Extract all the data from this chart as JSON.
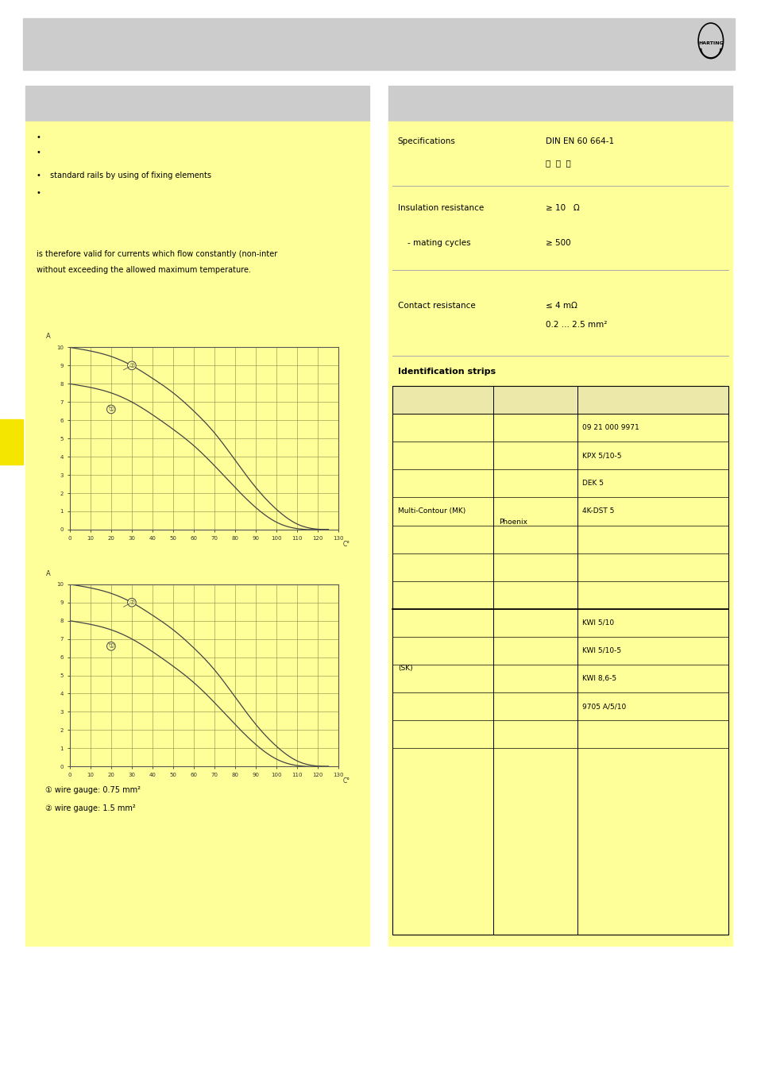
{
  "bg_color": "#ffffff",
  "yellow_bg": "#ffff99",
  "header_bg": "#cccccc",
  "graph1_curve1_pts": [
    [
      0,
      10
    ],
    [
      10,
      9.8
    ],
    [
      20,
      9.5
    ],
    [
      30,
      9.0
    ],
    [
      40,
      8.3
    ],
    [
      50,
      7.5
    ],
    [
      60,
      6.5
    ],
    [
      70,
      5.3
    ],
    [
      80,
      3.8
    ],
    [
      90,
      2.3
    ],
    [
      100,
      1.1
    ],
    [
      110,
      0.3
    ],
    [
      120,
      0.02
    ],
    [
      125,
      0
    ]
  ],
  "graph1_curve2_pts": [
    [
      0,
      8
    ],
    [
      10,
      7.8
    ],
    [
      20,
      7.5
    ],
    [
      30,
      7.0
    ],
    [
      40,
      6.3
    ],
    [
      50,
      5.5
    ],
    [
      60,
      4.6
    ],
    [
      70,
      3.5
    ],
    [
      80,
      2.3
    ],
    [
      90,
      1.2
    ],
    [
      100,
      0.4
    ],
    [
      110,
      0.05
    ],
    [
      115,
      0
    ]
  ],
  "graph2_curve1_pts": [
    [
      0,
      10
    ],
    [
      10,
      9.8
    ],
    [
      20,
      9.5
    ],
    [
      30,
      9.0
    ],
    [
      40,
      8.3
    ],
    [
      50,
      7.5
    ],
    [
      60,
      6.5
    ],
    [
      70,
      5.3
    ],
    [
      80,
      3.8
    ],
    [
      90,
      2.3
    ],
    [
      100,
      1.1
    ],
    [
      110,
      0.3
    ],
    [
      120,
      0.02
    ],
    [
      125,
      0
    ]
  ],
  "graph2_curve2_pts": [
    [
      0,
      8
    ],
    [
      10,
      7.8
    ],
    [
      20,
      7.5
    ],
    [
      30,
      7.0
    ],
    [
      40,
      6.3
    ],
    [
      50,
      5.5
    ],
    [
      60,
      4.6
    ],
    [
      70,
      3.5
    ],
    [
      80,
      2.3
    ],
    [
      90,
      1.2
    ],
    [
      100,
      0.4
    ],
    [
      110,
      0.05
    ],
    [
      115,
      0
    ]
  ],
  "spec_label": "Specifications",
  "spec_value": "DIN EN 60 664-1",
  "insulation_label": "Insulation resistance",
  "insulation_value": "≥ 10   Ω",
  "mating_label": "- mating cycles",
  "mating_value": "≥ 500",
  "contact_label": "Contact resistance",
  "contact_value": "≤ 4 mΩ",
  "contact_range": "0.2 ... 2.5 mm²",
  "id_strips_label": "Identification strips",
  "wire1_label": "① wire gauge: 0.75 mm²",
  "wire2_label": "② wire gauge: 1.5 mm²",
  "text_is_therefore": "is therefore valid for currents which flow constantly (non-inter",
  "text_without": "without exceeding the allowed maximum temperature.",
  "bullet_texts": [
    "",
    "",
    "standard rails by using of fixing elements",
    ""
  ]
}
